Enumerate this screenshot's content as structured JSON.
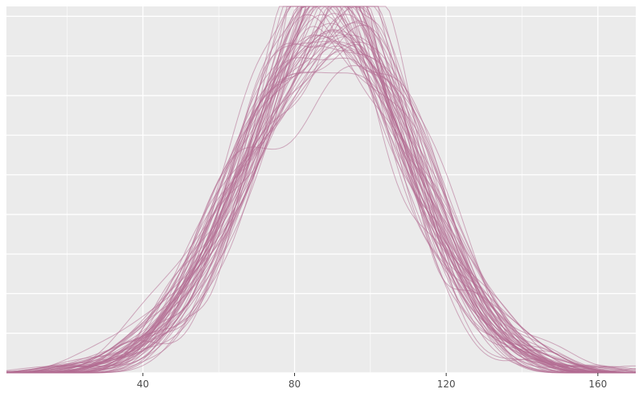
{
  "chart_data": {
    "type": "line",
    "title": "",
    "xlabel": "",
    "ylabel": "",
    "xlim": [
      4,
      170
    ],
    "ylim": [
      0,
      0.0185
    ],
    "x_ticks": [
      40,
      80,
      120,
      160
    ],
    "x_tick_labels": [
      "40",
      "80",
      "120",
      "160"
    ],
    "x_minor_ticks": [
      20,
      60,
      100,
      140
    ],
    "y_gridlines": [
      0,
      0.002,
      0.004,
      0.006,
      0.008,
      0.01,
      0.012,
      0.014,
      0.016,
      0.018
    ],
    "y_tick_labels_visible": false,
    "grid": true,
    "legend": "none",
    "series_kind": "density curves of repeated samples (overlaid)",
    "series_count": 60,
    "center_range": [
      84,
      94
    ],
    "sd_range": [
      19,
      24
    ],
    "peak_density_range": [
      0.012,
      0.0185
    ],
    "colors": {
      "line": "#b36b92",
      "panel_background": "#ebebeb",
      "grid": "#ffffff",
      "tick_text": "#4d4d4d"
    }
  }
}
